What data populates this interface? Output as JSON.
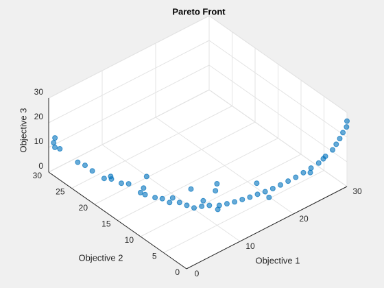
{
  "chart_data": {
    "type": "scatter3",
    "title": "Pareto Front",
    "xlabel": "Objective 1",
    "ylabel": "Objective 2",
    "zlabel": "Objective 3",
    "x": [
      0.5,
      0.3,
      1,
      0.8,
      2,
      2.5,
      3,
      3.5,
      4,
      5,
      5.5,
      6,
      6,
      7,
      7.5,
      8,
      9,
      9.5,
      10,
      11,
      12,
      13,
      14,
      15,
      16,
      17,
      18,
      19,
      20,
      21,
      22,
      23,
      24,
      25,
      26,
      27,
      28,
      28.5,
      29,
      29.5,
      30,
      30,
      4,
      6,
      10,
      12,
      8,
      14,
      16,
      20,
      3,
      11,
      18,
      24,
      26
    ],
    "y": [
      29.5,
      29,
      29.8,
      28.5,
      26,
      25,
      24,
      22,
      21,
      20,
      19,
      17,
      16,
      15,
      14,
      13,
      12,
      11,
      10,
      9.5,
      9,
      8,
      7.5,
      7,
      6.5,
      6,
      5.5,
      5,
      4.5,
      4,
      3.5,
      3,
      2.5,
      2,
      1.5,
      1.2,
      0.8,
      0.6,
      0.4,
      0.3,
      0.1,
      0,
      14,
      10,
      8,
      13,
      18,
      10,
      12,
      8,
      20,
      6,
      3,
      1,
      0.5
    ],
    "z": [
      12,
      11,
      13,
      10.5,
      7,
      6.5,
      5,
      4,
      4.5,
      3,
      3.5,
      2,
      2.5,
      1.5,
      1.8,
      1,
      1.2,
      0.8,
      0.5,
      0.7,
      0.6,
      0.8,
      1,
      1.3,
      1.8,
      2.3,
      3,
      3.6,
      4.4,
      5.4,
      6.5,
      7.6,
      9,
      10.4,
      12,
      14,
      16,
      18,
      20,
      22,
      24,
      26.5,
      10,
      9,
      6,
      2,
      5,
      3,
      1,
      2,
      8,
      4,
      5,
      11,
      15
    ],
    "color": "#0072bd",
    "xlim": [
      0,
      30
    ],
    "ylim": [
      0,
      30
    ],
    "zlim": [
      0,
      30
    ],
    "xticks": [
      0,
      10,
      20,
      30
    ],
    "yticks": [
      0,
      5,
      10,
      15,
      20,
      25,
      30
    ],
    "zticks": [
      0,
      10,
      20,
      30
    ],
    "grid": true
  }
}
